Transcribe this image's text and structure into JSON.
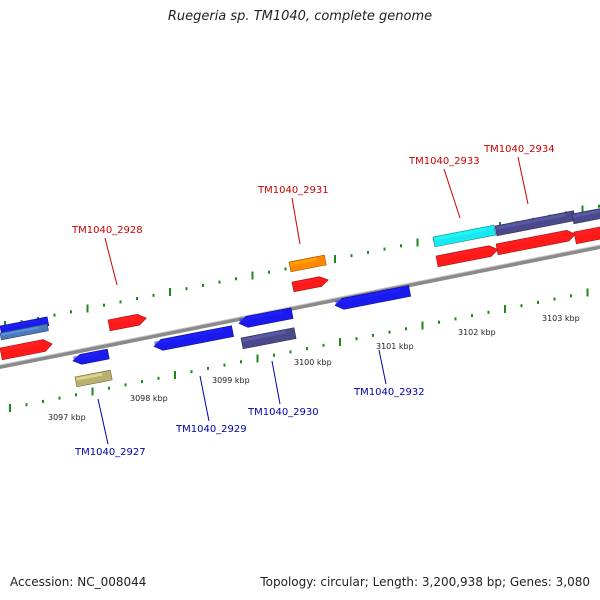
{
  "title": "Ruegeria sp. TM1040, complete genome",
  "footer": {
    "accession": "Accession: NC_008044",
    "summary": "Topology: circular; Length: 3,200,938 bp; Genes: 3,080"
  },
  "colors": {
    "plus_label": "#cc0000",
    "minus_label": "#0000aa",
    "tick": "#1a8a1a",
    "backbone": "#8a8a8a",
    "red": "#ff1a1a",
    "blue": "#1a1aee",
    "slate": "#4a4a8a",
    "khaki": "#b8b070",
    "cyan": "#1ae8ee",
    "orange": "#ff8800",
    "steel": "#4a7ab8"
  },
  "scale_labels": [
    "3097 kbp",
    "3098 kbp",
    "3099 kbp",
    "3100 kbp",
    "3101 kbp",
    "3102 kbp",
    "3103 kbp"
  ],
  "gene_labels": [
    {
      "id": "TM1040_2928",
      "strand": "plus"
    },
    {
      "id": "TM1040_2931",
      "strand": "plus"
    },
    {
      "id": "TM1040_2933",
      "strand": "plus"
    },
    {
      "id": "TM1040_2934",
      "strand": "plus"
    },
    {
      "id": "TM1040_2927",
      "strand": "minus"
    },
    {
      "id": "TM1040_2929",
      "strand": "minus"
    },
    {
      "id": "TM1040_2930",
      "strand": "minus"
    },
    {
      "id": "TM1040_2932",
      "strand": "minus"
    }
  ]
}
